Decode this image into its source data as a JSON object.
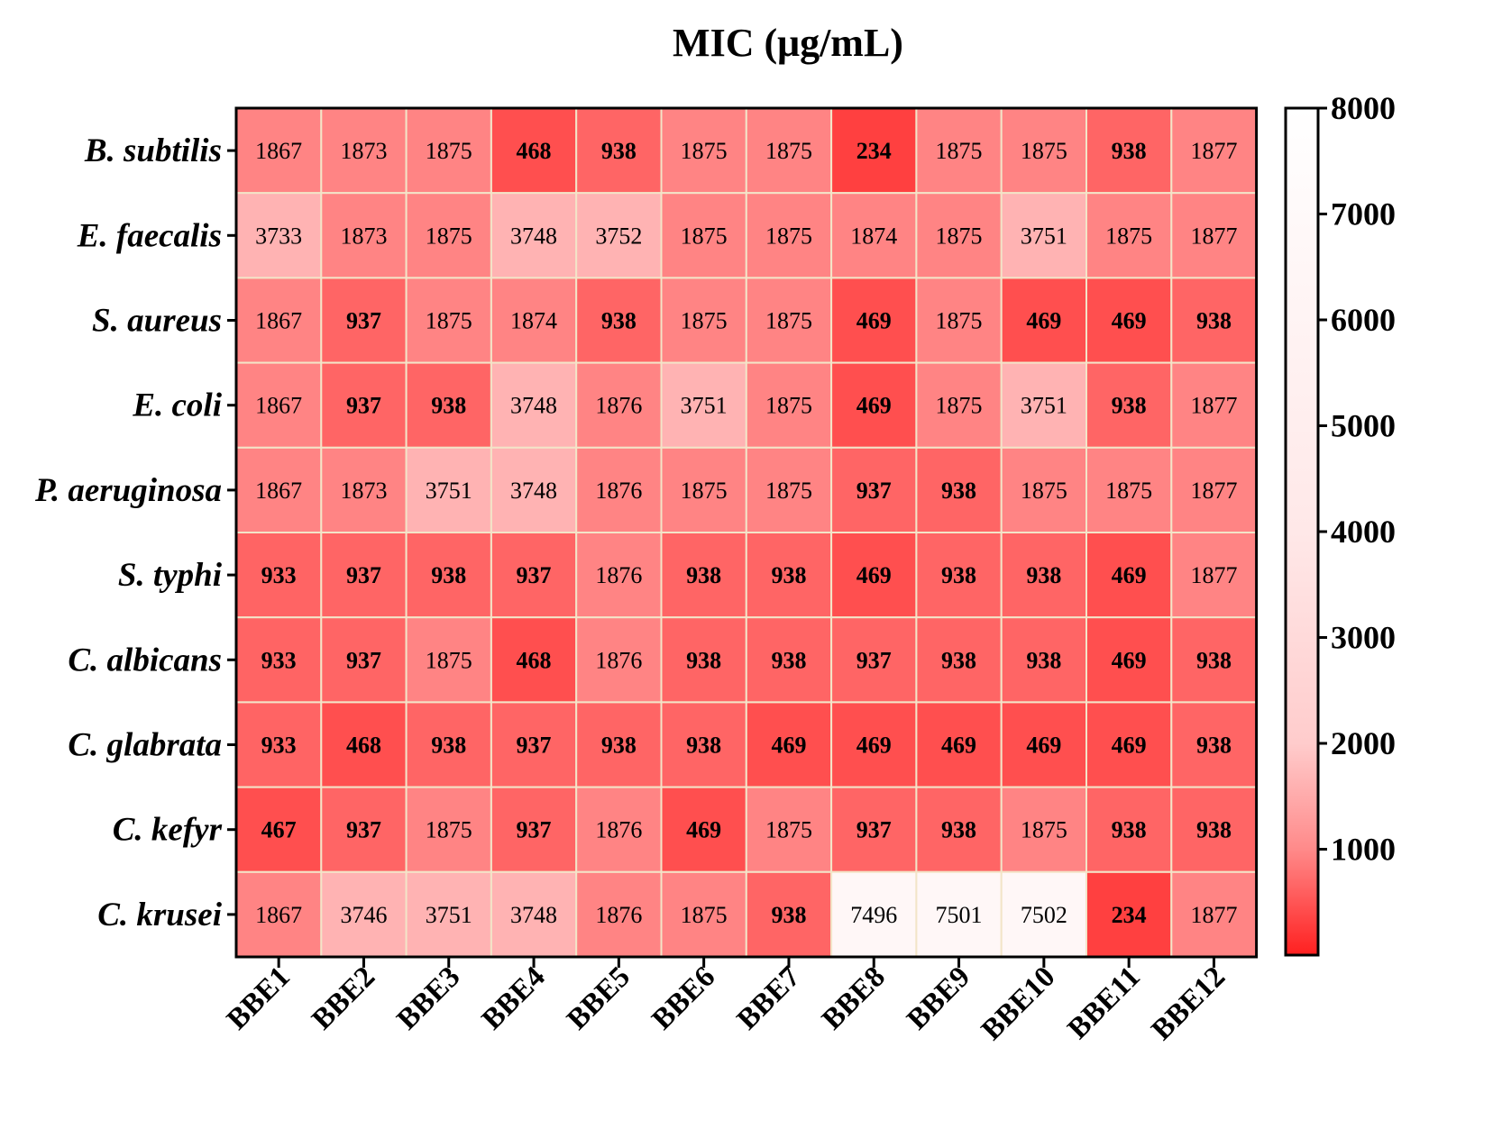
{
  "chart_data": {
    "type": "heatmap",
    "title": "MIC (μg/mL)",
    "rows": [
      "B. subtilis",
      "E. faecalis",
      "S. aureus",
      "E. coli",
      "P. aeruginosa",
      "S. typhi",
      "C. albicans",
      "C. glabrata",
      "C. kefyr",
      "C. krusei"
    ],
    "columns": [
      "BBE1",
      "BBE2",
      "BBE3",
      "BBE4",
      "BBE5",
      "BBE6",
      "BBE7",
      "BBE8",
      "BBE9",
      "BBE10",
      "BBE11",
      "BBE12"
    ],
    "values": [
      [
        1867,
        1873,
        1875,
        468,
        938,
        1875,
        1875,
        234,
        1875,
        1875,
        938,
        1877
      ],
      [
        3733,
        1873,
        1875,
        3748,
        3752,
        1875,
        1875,
        1874,
        1875,
        3751,
        1875,
        1877
      ],
      [
        1867,
        937,
        1875,
        1874,
        938,
        1875,
        1875,
        469,
        1875,
        469,
        469,
        938
      ],
      [
        1867,
        937,
        938,
        3748,
        1876,
        3751,
        1875,
        469,
        1875,
        3751,
        938,
        1877
      ],
      [
        1867,
        1873,
        3751,
        3748,
        1876,
        1875,
        1875,
        937,
        938,
        1875,
        1875,
        1877
      ],
      [
        933,
        937,
        938,
        937,
        1876,
        938,
        938,
        469,
        938,
        938,
        469,
        1877
      ],
      [
        933,
        937,
        1875,
        468,
        1876,
        938,
        938,
        937,
        938,
        938,
        469,
        938
      ],
      [
        933,
        468,
        938,
        937,
        938,
        938,
        469,
        469,
        469,
        469,
        469,
        938
      ],
      [
        467,
        937,
        1875,
        937,
        1876,
        469,
        1875,
        937,
        938,
        1875,
        938,
        938
      ],
      [
        1867,
        3746,
        3751,
        3748,
        1876,
        1875,
        938,
        7496,
        7501,
        7502,
        234,
        1877
      ]
    ],
    "colorbar": {
      "range": [
        0,
        8000
      ],
      "ticks": [
        1000,
        2000,
        3000,
        4000,
        5000,
        6000,
        7000,
        8000
      ],
      "colors": {
        "low": "#ff2020",
        "high": "#ffffff"
      }
    }
  }
}
